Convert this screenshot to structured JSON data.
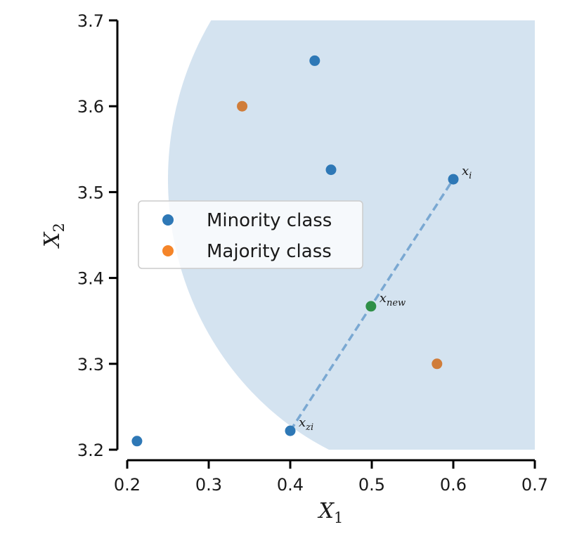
{
  "chart_data": {
    "type": "scatter",
    "title": "",
    "xlabel": {
      "base": "X",
      "sub": "1"
    },
    "ylabel": {
      "base": "X",
      "sub": "2"
    },
    "xlim": [
      0.2,
      0.7
    ],
    "ylim": [
      3.2,
      3.7
    ],
    "xticks": [
      "0.2",
      "0.3",
      "0.4",
      "0.5",
      "0.6",
      "0.7"
    ],
    "yticks": [
      "3.2",
      "3.3",
      "3.4",
      "3.5",
      "3.6",
      "3.7"
    ],
    "grid": false,
    "legend_position": "center-left",
    "region": {
      "shape": "circle",
      "center": [
        0.6,
        3.515
      ],
      "radius": 0.35,
      "color": "#d4e3f0"
    },
    "series": [
      {
        "name": "Minority class",
        "color": "#2e78b6",
        "points": [
          [
            0.212,
            3.21
          ],
          [
            0.4,
            3.222
          ],
          [
            0.43,
            3.653
          ],
          [
            0.45,
            3.526
          ],
          [
            0.6,
            3.515
          ]
        ]
      },
      {
        "name": "Majority class",
        "color": "#d07d3a",
        "points": [
          [
            0.341,
            3.6
          ],
          [
            0.58,
            3.3
          ]
        ]
      },
      {
        "name": "",
        "color": "#2f8f47",
        "points": [
          [
            0.499,
            3.367
          ]
        ]
      }
    ],
    "line": {
      "from": [
        0.4,
        3.222
      ],
      "to": [
        0.6,
        3.515
      ],
      "color": "#7aa8d2",
      "style": "dashed"
    },
    "annotations": [
      {
        "base": "x",
        "sub": "i",
        "x": 0.6,
        "y": 3.515
      },
      {
        "base": "x",
        "sub": "new",
        "x": 0.499,
        "y": 3.367
      },
      {
        "base": "x",
        "sub": "zi",
        "x": 0.4,
        "y": 3.222
      }
    ],
    "legend": [
      {
        "label": "Minority class",
        "color": "#2e78b6"
      },
      {
        "label": "Majority class",
        "color": "#f58529"
      }
    ]
  }
}
